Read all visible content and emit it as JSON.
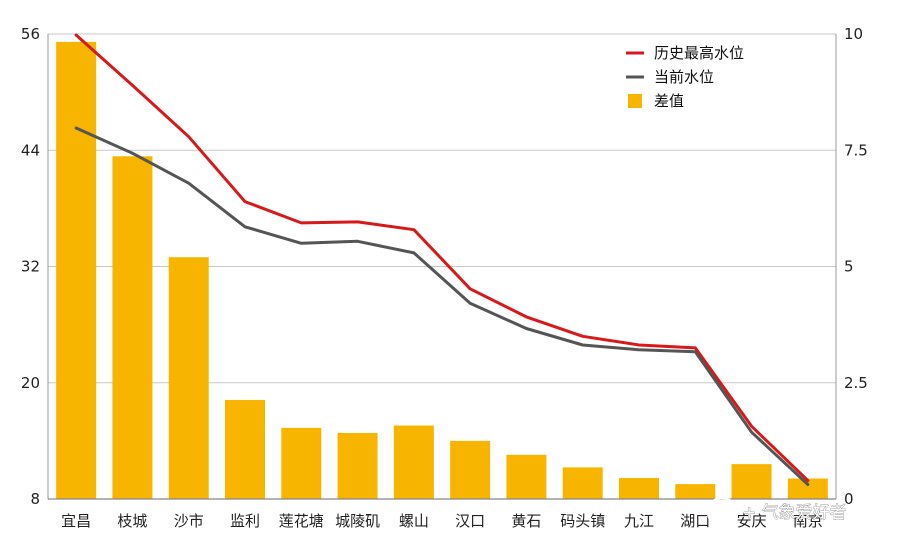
{
  "chart_data": {
    "type": "bar",
    "categories": [
      "宜昌",
      "枝城",
      "沙市",
      "监利",
      "莲花塘",
      "城陵矶",
      "螺山",
      "汉口",
      "黄石",
      "码头镇",
      "九江",
      "湖口",
      "安庆",
      "南京"
    ],
    "series": [
      {
        "name": "历史最高水位",
        "type": "line",
        "axis": "left",
        "color": "#d7191c",
        "values": [
          55.9,
          50.7,
          45.4,
          38.7,
          36.5,
          36.6,
          35.8,
          29.7,
          26.8,
          24.8,
          23.9,
          23.6,
          15.5,
          9.9
        ]
      },
      {
        "name": "当前水位",
        "type": "line",
        "axis": "left",
        "color": "#555555",
        "values": [
          46.3,
          43.7,
          40.6,
          36.1,
          34.4,
          34.6,
          33.4,
          28.2,
          25.6,
          23.9,
          23.4,
          23.2,
          14.9,
          9.5
        ]
      },
      {
        "name": "差值",
        "type": "bar",
        "axis": "right",
        "color": "#f8b500",
        "values": [
          9.83,
          7.37,
          5.2,
          2.13,
          1.53,
          1.42,
          1.58,
          1.25,
          0.95,
          0.68,
          0.45,
          0.32,
          0.75,
          0.44
        ]
      }
    ],
    "yleft": {
      "ylim": [
        8,
        56
      ],
      "ticks": [
        56,
        44,
        32,
        20,
        8
      ]
    },
    "yright": {
      "ylim": [
        0,
        10
      ],
      "ticks": [
        "10",
        "7.5",
        "5",
        "2.5",
        "0"
      ]
    },
    "grid": true,
    "legend_position": "top-right"
  },
  "watermark": {
    "text": "+ 气象爱好者",
    "icon": "wechat-logo-icon"
  }
}
